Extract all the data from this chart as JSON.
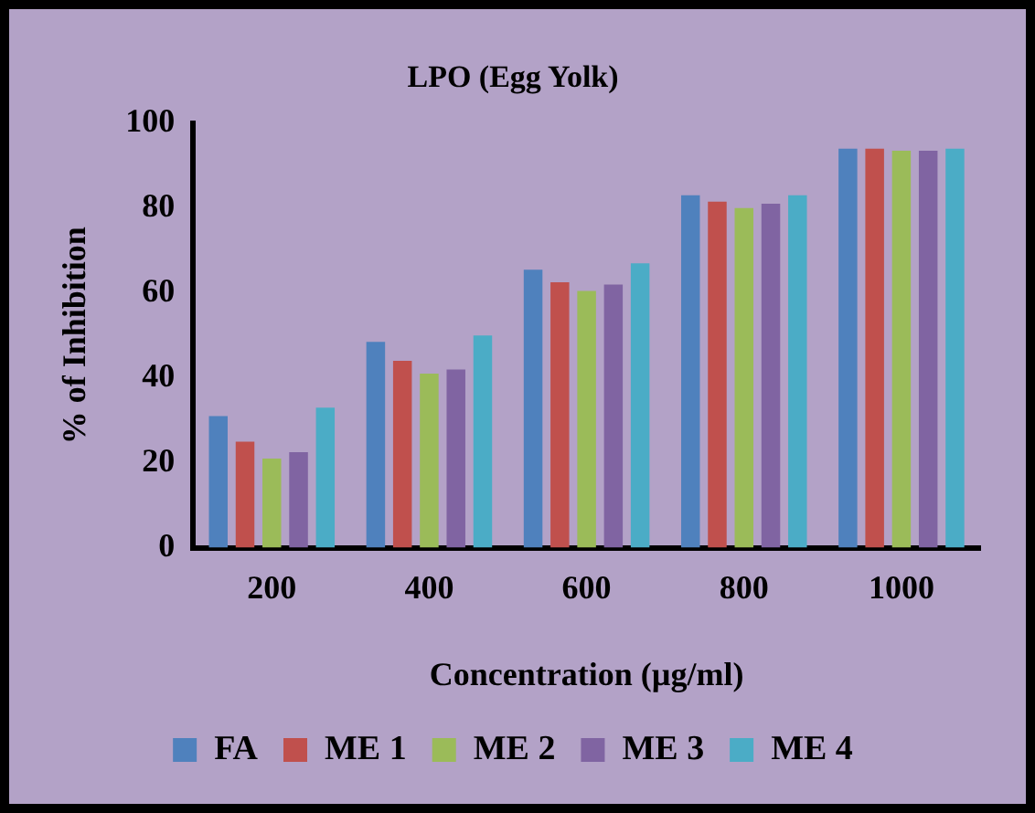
{
  "chart_data": {
    "type": "bar",
    "title": "LPO (Egg Yolk)",
    "xlabel": "Concentration (µg/ml)",
    "ylabel": "% of Inhibition",
    "categories": [
      "200",
      "400",
      "600",
      "800",
      "1000"
    ],
    "series": [
      {
        "name": "FA",
        "color": "#4f81bd",
        "values": [
          31,
          48.5,
          65.5,
          83,
          94
        ]
      },
      {
        "name": "ME 1",
        "color": "#c0504d",
        "values": [
          25,
          44,
          62.5,
          81.5,
          94
        ]
      },
      {
        "name": "ME 2",
        "color": "#9bbb59",
        "values": [
          21,
          41,
          60.5,
          80,
          93.5
        ]
      },
      {
        "name": "ME 3",
        "color": "#8064a2",
        "values": [
          22.5,
          42,
          62,
          81,
          93.5
        ]
      },
      {
        "name": "ME 4",
        "color": "#4bacc6",
        "values": [
          33,
          50,
          67,
          83,
          94
        ]
      }
    ],
    "ylim": [
      0,
      100
    ],
    "yticks": [
      0,
      20,
      40,
      60,
      80,
      100
    ],
    "grid": false,
    "legend": "bottom"
  }
}
